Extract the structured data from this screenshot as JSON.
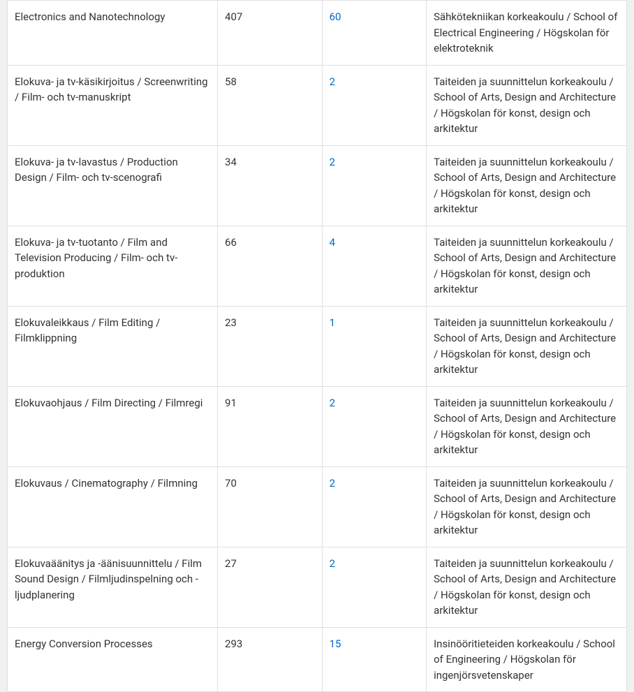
{
  "table": {
    "columns": [
      {
        "key": "name",
        "class": "col-name"
      },
      {
        "key": "num1",
        "class": "col-num1"
      },
      {
        "key": "num2",
        "class": "col-num2",
        "link": true
      },
      {
        "key": "school",
        "class": "col-school"
      }
    ],
    "rows": [
      {
        "name": "Electronics and Nanotechnology",
        "num1": "407",
        "num2": "60",
        "school": "Sähkötekniikan korkeakoulu / School of Electrical Engineering / Högskolan för elektroteknik"
      },
      {
        "name": "Elokuva- ja tv-käsikirjoitus / Screenwriting / Film- och tv-manuskript",
        "num1": "58",
        "num2": "2",
        "school": "Taiteiden ja suunnittelun korkeakoulu / School of Arts, Design and Architecture / Högskolan för konst, design och arkitektur"
      },
      {
        "name": "Elokuva- ja tv-lavastus / Production Design / Film- och tv-scenografi",
        "num1": "34",
        "num2": "2",
        "school": "Taiteiden ja suunnittelun korkeakoulu / School of Arts, Design and Architecture / Högskolan för konst, design och arkitektur"
      },
      {
        "name": "Elokuva- ja tv-tuotanto / Film and Television Producing / Film- och tv-produktion",
        "num1": "66",
        "num2": "4",
        "school": "Taiteiden ja suunnittelun korkeakoulu / School of Arts, Design and Architecture / Högskolan för konst, design och arkitektur"
      },
      {
        "name": "Elokuvaleikkaus / Film Editing / Filmklippning",
        "num1": "23",
        "num2": "1",
        "school": "Taiteiden ja suunnittelun korkeakoulu / School of Arts, Design and Architecture / Högskolan för konst, design och arkitektur"
      },
      {
        "name": "Elokuvaohjaus / Film Directing / Filmregi",
        "num1": "91",
        "num2": "2",
        "school": "Taiteiden ja suunnittelun korkeakoulu / School of Arts, Design and Architecture / Högskolan för konst, design och arkitektur"
      },
      {
        "name": "Elokuvaus / Cinematography / Filmning",
        "num1": "70",
        "num2": "2",
        "school": "Taiteiden ja suunnittelun korkeakoulu / School of Arts, Design and Architecture / Högskolan för konst, design och arkitektur"
      },
      {
        "name": "Elokuvaäänitys ja -äänisuunnittelu / Film Sound Design / Filmljudinspelning och -ljudplanering",
        "num1": "27",
        "num2": "2",
        "school": "Taiteiden ja suunnittelun korkeakoulu / School of Arts, Design and Architecture / Högskolan för konst, design och arkitektur"
      },
      {
        "name": "Energy Conversion Processes",
        "num1": "293",
        "num2": "15",
        "school": "Insinööritieteiden korkeakoulu / School of Engineering / Högskolan för ingenjörsvetenskaper"
      }
    ]
  },
  "styles": {
    "text_color": "#333333",
    "link_color": "#0066cc",
    "border_color": "#e0e0e0",
    "background_color": "#ffffff",
    "page_background": "#f0f0f0",
    "font_size": 15,
    "cell_padding": "12px 10px",
    "line_height": 1.5,
    "col_widths": {
      "name": 298,
      "num1": 148,
      "num2": 148,
      "school": 284
    }
  }
}
